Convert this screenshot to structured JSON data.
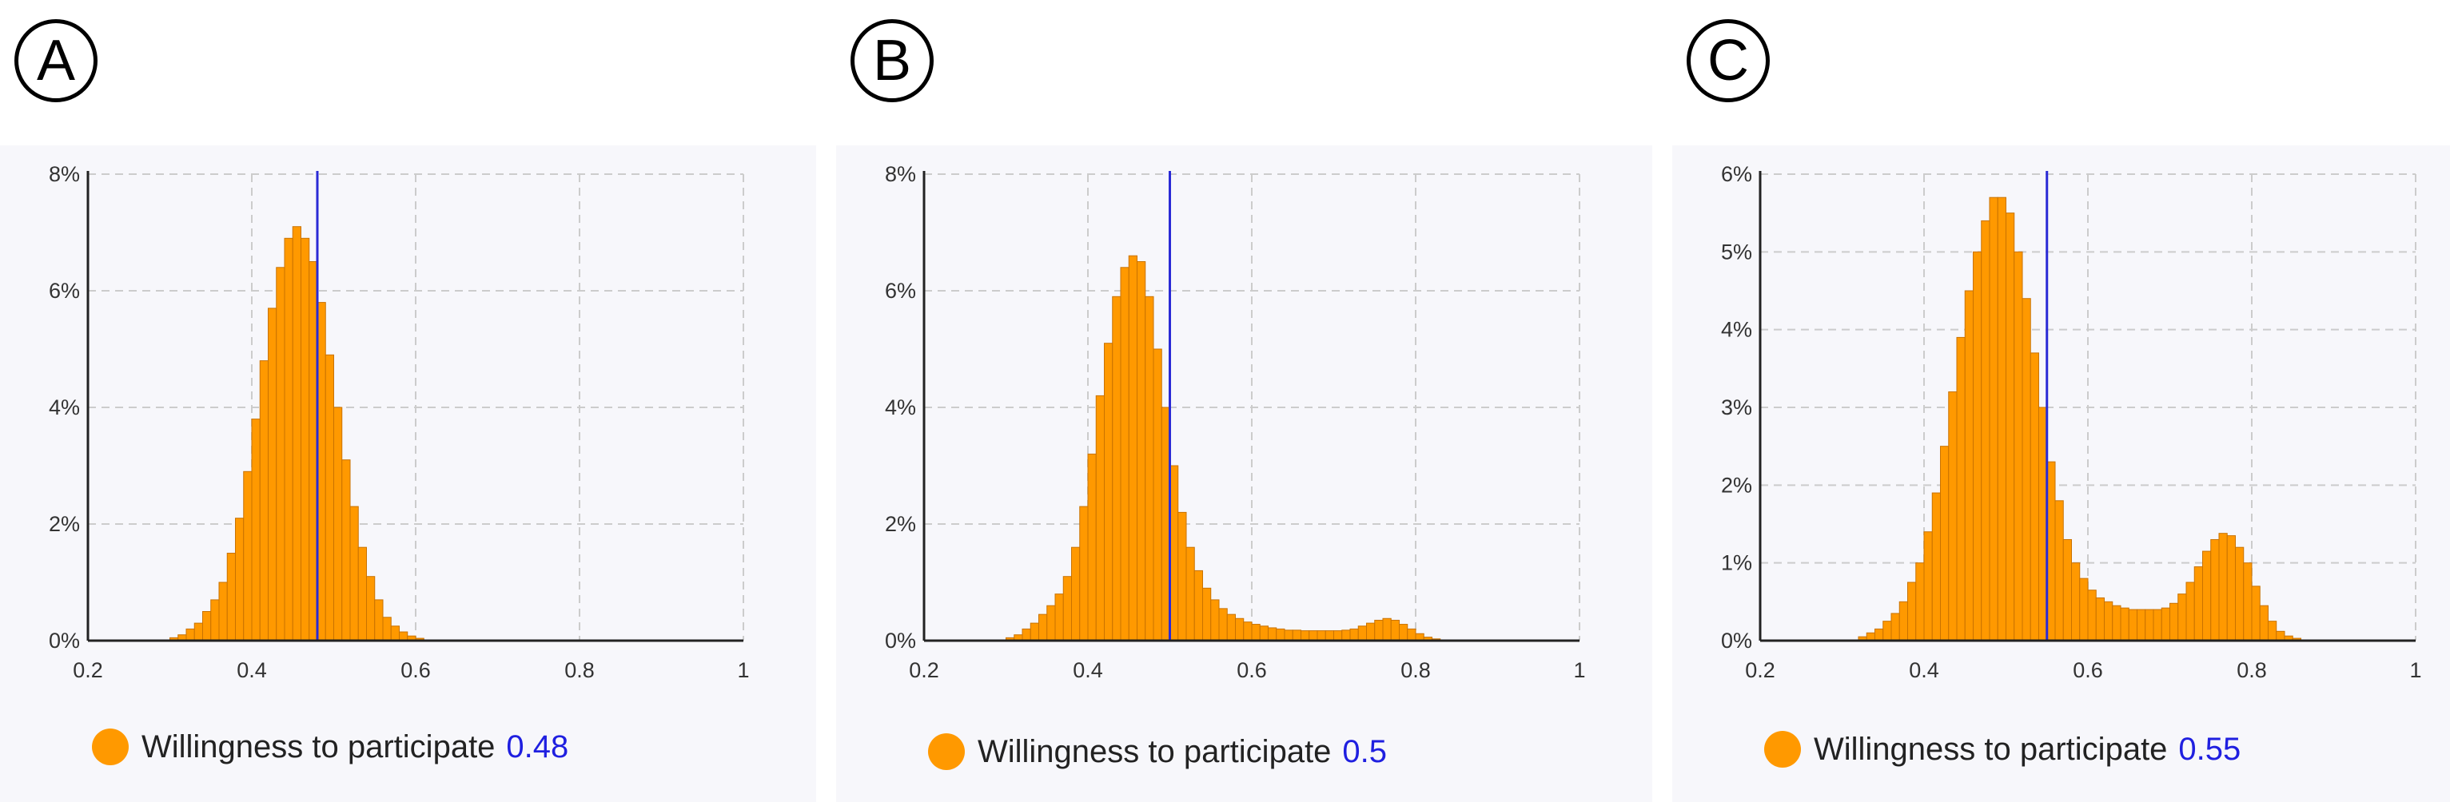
{
  "colors": {
    "bar_fill": "#ff9900",
    "bar_stroke": "#c97200",
    "marker": "#2a2ad6",
    "grid": "#cccccc",
    "legend_value": "#1f1fe0"
  },
  "chart_data": [
    {
      "type": "bar",
      "panel_label": "A",
      "xlim": [
        0.2,
        1
      ],
      "ylim": [
        0,
        8
      ],
      "x_ticks": [
        "0.2",
        "0.4",
        "0.6",
        "0.8",
        "1"
      ],
      "y_ticks": [
        "0%",
        "2%",
        "4%",
        "6%",
        "8%"
      ],
      "y_tick_values": [
        0,
        2,
        4,
        6,
        8
      ],
      "x_tick_values": [
        0.2,
        0.4,
        0.6,
        0.8,
        1.0
      ],
      "grid": true,
      "bin_start": 0.3,
      "bin_width": 0.01,
      "values": [
        0.05,
        0.1,
        0.2,
        0.3,
        0.5,
        0.7,
        1.0,
        1.5,
        2.1,
        2.9,
        3.8,
        4.8,
        5.7,
        6.4,
        6.9,
        7.1,
        6.9,
        6.5,
        5.8,
        4.9,
        4.0,
        3.1,
        2.3,
        1.6,
        1.1,
        0.7,
        0.4,
        0.25,
        0.15,
        0.08,
        0.04
      ],
      "marker_x": 0.48,
      "legend": {
        "label": "Willingness to participate",
        "value": "0.48"
      }
    },
    {
      "type": "bar",
      "panel_label": "B",
      "xlim": [
        0.2,
        1
      ],
      "ylim": [
        0,
        8
      ],
      "x_ticks": [
        "0.2",
        "0.4",
        "0.6",
        "0.8",
        "1"
      ],
      "y_ticks": [
        "0%",
        "2%",
        "4%",
        "6%",
        "8%"
      ],
      "y_tick_values": [
        0,
        2,
        4,
        6,
        8
      ],
      "x_tick_values": [
        0.2,
        0.4,
        0.6,
        0.8,
        1.0
      ],
      "grid": true,
      "bin_start": 0.3,
      "bin_width": 0.01,
      "values": [
        0.05,
        0.1,
        0.2,
        0.3,
        0.45,
        0.6,
        0.8,
        1.1,
        1.6,
        2.3,
        3.2,
        4.2,
        5.1,
        5.9,
        6.4,
        6.6,
        6.5,
        5.9,
        5.0,
        4.0,
        3.0,
        2.2,
        1.6,
        1.2,
        0.9,
        0.7,
        0.55,
        0.45,
        0.38,
        0.32,
        0.28,
        0.25,
        0.22,
        0.2,
        0.18,
        0.18,
        0.17,
        0.17,
        0.17,
        0.17,
        0.17,
        0.18,
        0.2,
        0.25,
        0.3,
        0.35,
        0.38,
        0.35,
        0.28,
        0.2,
        0.12,
        0.06,
        0.03
      ],
      "marker_x": 0.5,
      "legend": {
        "label": "Willingness to participate",
        "value": "0.5"
      }
    },
    {
      "type": "bar",
      "panel_label": "C",
      "xlim": [
        0.2,
        1
      ],
      "ylim": [
        0,
        6
      ],
      "x_ticks": [
        "0.2",
        "0.4",
        "0.6",
        "0.8",
        "1"
      ],
      "y_ticks": [
        "0%",
        "1%",
        "2%",
        "3%",
        "4%",
        "5%",
        "6%"
      ],
      "y_tick_values": [
        0,
        1,
        2,
        3,
        4,
        5,
        6
      ],
      "x_tick_values": [
        0.2,
        0.4,
        0.6,
        0.8,
        1.0
      ],
      "grid": true,
      "bin_start": 0.32,
      "bin_width": 0.01,
      "values": [
        0.05,
        0.1,
        0.15,
        0.25,
        0.35,
        0.5,
        0.75,
        1.0,
        1.4,
        1.9,
        2.5,
        3.2,
        3.9,
        4.5,
        5.0,
        5.4,
        5.7,
        5.7,
        5.5,
        5.0,
        4.4,
        3.7,
        3.0,
        2.3,
        1.8,
        1.3,
        1.0,
        0.8,
        0.65,
        0.55,
        0.5,
        0.45,
        0.42,
        0.4,
        0.4,
        0.4,
        0.4,
        0.42,
        0.48,
        0.6,
        0.75,
        0.95,
        1.15,
        1.3,
        1.38,
        1.35,
        1.2,
        1.0,
        0.7,
        0.45,
        0.25,
        0.12,
        0.06,
        0.03
      ],
      "marker_x": 0.55,
      "legend": {
        "label": "Willingness to participate",
        "value": "0.55"
      }
    }
  ]
}
